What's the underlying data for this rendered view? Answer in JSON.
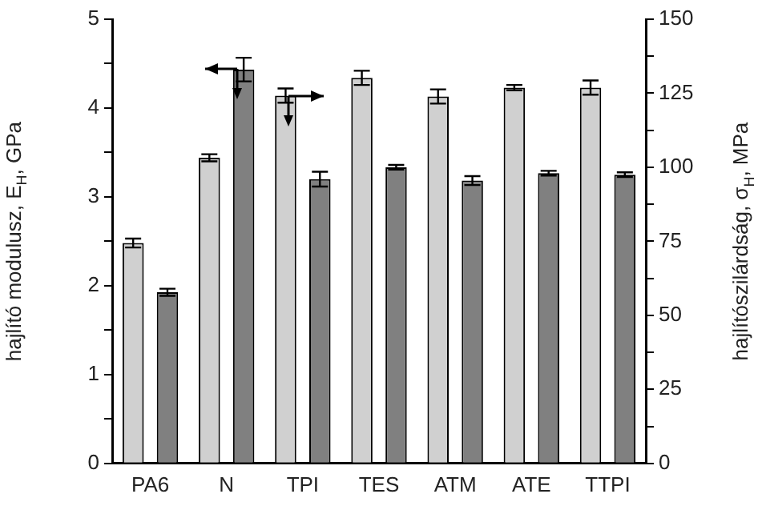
{
  "chart_data": {
    "type": "bar",
    "xlabel": null,
    "ylabel": "hajlító modulusz, E$_{H}$, GPa",
    "y2label": "hajlítószilárdság, σ$_{H}$, MPa",
    "categories": [
      "PA6",
      "N",
      "TPI",
      "TES",
      "ATM",
      "ATE",
      "TTPI"
    ],
    "series": [
      {
        "color": "#d0d0d0",
        "values": [
          2.48,
          3.44,
          4.14,
          4.34,
          4.13,
          4.23,
          4.23
        ],
        "errors": [
          0.05,
          0.04,
          0.08,
          0.08,
          0.08,
          0.03,
          0.08
        ]
      },
      {
        "color": "#808080",
        "axis": "y2",
        "values": [
          57.8,
          133,
          96,
          100,
          95.5,
          98,
          97.5
        ],
        "errors": [
          1.2,
          4,
          2.5,
          0.8,
          1.5,
          0.8,
          0.8
        ]
      }
    ],
    "ylim": [
      0,
      5
    ],
    "yticks": [
      0,
      {
        "value": 0.5,
        "label": null
      },
      1,
      {
        "value": 1.5,
        "label": null
      },
      2,
      {
        "value": 2.5,
        "label": null
      },
      3,
      {
        "value": 3.5,
        "label": null
      },
      4,
      {
        "value": 4.5,
        "label": null
      },
      5
    ],
    "y2lim": [
      0,
      150
    ],
    "y2ticks": [
      0,
      {
        "value": 12.5,
        "label": null
      },
      25,
      {
        "value": 37.5,
        "label": null
      },
      50,
      {
        "value": 62.5,
        "label": null
      },
      75,
      {
        "value": 87.5,
        "label": null
      },
      100,
      {
        "value": 112.5,
        "label": null
      },
      125,
      {
        "value": 137.5,
        "label": null
      },
      150
    ],
    "grid": false,
    "legend": false
  }
}
